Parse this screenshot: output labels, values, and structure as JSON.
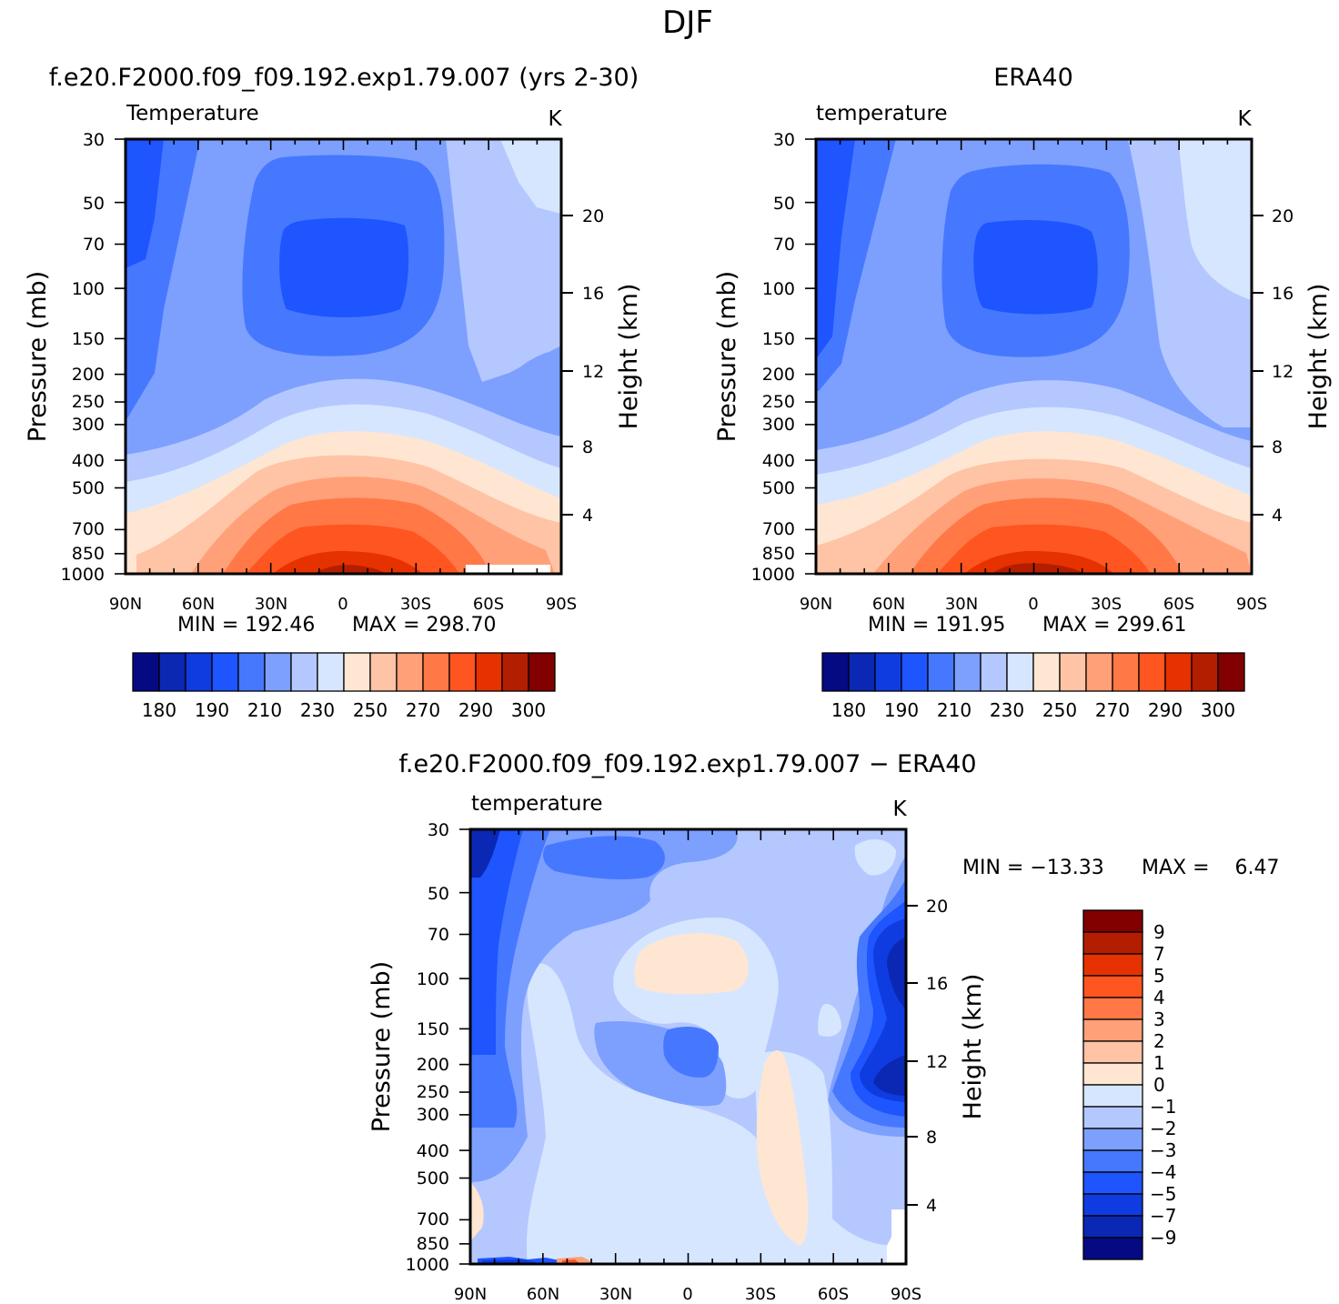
{
  "figure": {
    "title": "DJF"
  },
  "chart_data": [
    {
      "type": "heatmap",
      "id": "model",
      "header": "f.e20.F2000.f09_f09.192.exp1.79.007 (yrs 2-30)",
      "title": "Temperature",
      "units": "K",
      "xlabel": "",
      "ylabel": "Pressure (mb)",
      "ylabel_right": "Height (km)",
      "x_ticks": [
        "90N",
        "60N",
        "30N",
        "0",
        "30S",
        "60S",
        "90S"
      ],
      "y_ticks": [
        "30",
        "50",
        "70",
        "100",
        "150",
        "200",
        "250",
        "300",
        "400",
        "500",
        "700",
        "850",
        "1000"
      ],
      "y_ticks_right": [
        "20",
        "16",
        "12",
        "8",
        "4"
      ],
      "min_label": "MIN = 192.46",
      "max_label": "MAX = 298.70",
      "min": 192.46,
      "max": 298.7,
      "colorbar": {
        "orientation": "horizontal",
        "labels": [
          "180",
          "190",
          "210",
          "230",
          "250",
          "270",
          "290",
          "300"
        ]
      }
    },
    {
      "type": "heatmap",
      "id": "era",
      "header": "ERA40",
      "title": "temperature",
      "units": "K",
      "xlabel": "",
      "ylabel": "Pressure (mb)",
      "ylabel_right": "Height (km)",
      "x_ticks": [
        "90N",
        "60N",
        "30N",
        "0",
        "30S",
        "60S",
        "90S"
      ],
      "y_ticks": [
        "30",
        "50",
        "70",
        "100",
        "150",
        "200",
        "250",
        "300",
        "400",
        "500",
        "700",
        "850",
        "1000"
      ],
      "y_ticks_right": [
        "20",
        "16",
        "12",
        "8",
        "4"
      ],
      "min_label": "MIN = 191.95",
      "max_label": "MAX = 299.61",
      "min": 191.95,
      "max": 299.61,
      "colorbar": {
        "orientation": "horizontal",
        "labels": [
          "180",
          "190",
          "210",
          "230",
          "250",
          "270",
          "290",
          "300"
        ]
      }
    },
    {
      "type": "heatmap",
      "id": "diff",
      "header": "f.e20.F2000.f09_f09.192.exp1.79.007 − ERA40",
      "title": "temperature",
      "units": "K",
      "xlabel": "",
      "ylabel": "Pressure (mb)",
      "ylabel_right": "Height (km)",
      "x_ticks": [
        "90N",
        "60N",
        "30N",
        "0",
        "30S",
        "60S",
        "90S"
      ],
      "y_ticks": [
        "30",
        "50",
        "70",
        "100",
        "150",
        "200",
        "250",
        "300",
        "400",
        "500",
        "700",
        "850",
        "1000"
      ],
      "y_ticks_right": [
        "20",
        "16",
        "12",
        "8",
        "4"
      ],
      "min_label": "MIN = −13.33",
      "max_label": "MAX =    6.47",
      "min": -13.33,
      "max": 6.47,
      "colorbar": {
        "orientation": "vertical",
        "labels": [
          "9",
          "7",
          "5",
          "4",
          "3",
          "2",
          "1",
          "0",
          "−1",
          "−2",
          "−3",
          "−4",
          "−5",
          "−7",
          "−9"
        ]
      }
    }
  ],
  "palettes": {
    "temperature": [
      "#050a82",
      "#0a28b4",
      "#0f3ce1",
      "#1e55ff",
      "#4678ff",
      "#7da0ff",
      "#b4c8ff",
      "#d7e6ff",
      "#ffe6d2",
      "#ffc3a5",
      "#ffa078",
      "#ff7846",
      "#ff5520",
      "#e63200",
      "#b41e00",
      "#820000"
    ],
    "difference": [
      "#820000",
      "#b41e00",
      "#e63200",
      "#ff5520",
      "#ff7846",
      "#ffa078",
      "#ffc3a5",
      "#ffe6d2",
      "#d7e6ff",
      "#b4c8ff",
      "#7da0ff",
      "#4678ff",
      "#1e55ff",
      "#0f3ce1",
      "#0a28b4",
      "#050a82"
    ]
  }
}
